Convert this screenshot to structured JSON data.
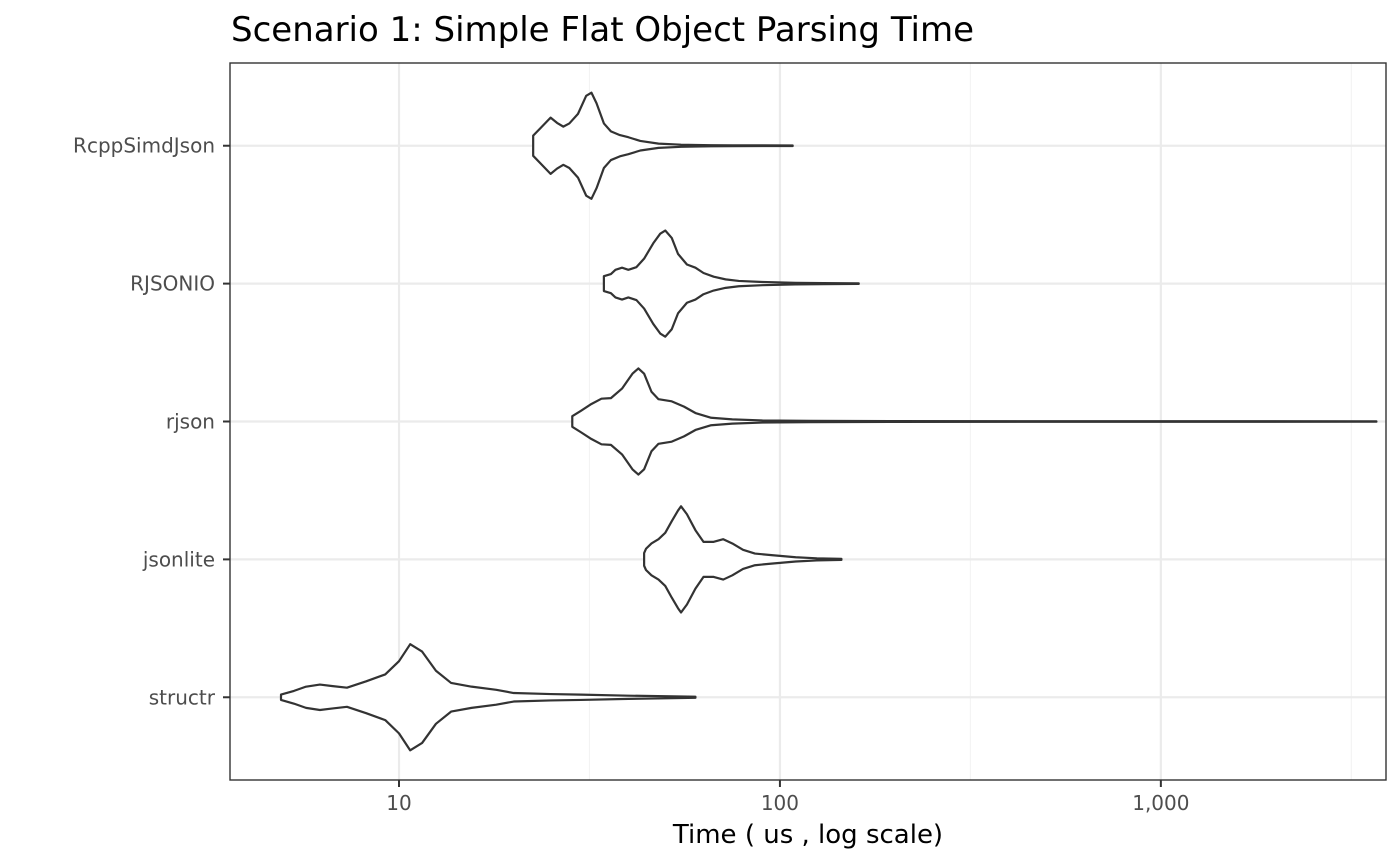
{
  "chart_data": {
    "type": "violin",
    "title": "Scenario 1: Simple Flat Object Parsing Time",
    "xlabel": "Time ( us , log scale)",
    "ylabel": "",
    "x_scale": "log10",
    "xlim": [
      3.6,
      3900
    ],
    "x_ticks": [
      10,
      100,
      1000
    ],
    "x_tick_labels": [
      "10",
      "100",
      "1,000"
    ],
    "grid": true,
    "legend": "none",
    "categories": [
      "RcppSimdJson",
      "RJSONIO",
      "rjson",
      "jsonlite",
      "structr"
    ],
    "series": [
      {
        "name": "RcppSimdJson",
        "min": 22.5,
        "max": 108,
        "density": [
          [
            22.5,
            0.19
          ],
          [
            23.5,
            0.33
          ],
          [
            25,
            0.53
          ],
          [
            26,
            0.43
          ],
          [
            27,
            0.36
          ],
          [
            28,
            0.42
          ],
          [
            29.5,
            0.6
          ],
          [
            31,
            0.94
          ],
          [
            32,
            1.0
          ],
          [
            33,
            0.8
          ],
          [
            34.5,
            0.42
          ],
          [
            36,
            0.27
          ],
          [
            38,
            0.2
          ],
          [
            40,
            0.16
          ],
          [
            43,
            0.09
          ],
          [
            48,
            0.04
          ],
          [
            55,
            0.02
          ],
          [
            60,
            0.015
          ],
          [
            66,
            0.01
          ],
          [
            75,
            0.008
          ],
          [
            108,
            0.005
          ]
        ]
      },
      {
        "name": "RJSONIO",
        "min": 34.5,
        "max": 161,
        "density": [
          [
            34.5,
            0.14
          ],
          [
            36,
            0.18
          ],
          [
            37,
            0.26
          ],
          [
            38.5,
            0.3
          ],
          [
            40,
            0.26
          ],
          [
            42,
            0.31
          ],
          [
            44,
            0.47
          ],
          [
            46.5,
            0.76
          ],
          [
            48.5,
            0.94
          ],
          [
            50,
            1.0
          ],
          [
            52,
            0.86
          ],
          [
            54,
            0.56
          ],
          [
            57,
            0.36
          ],
          [
            60,
            0.3
          ],
          [
            63,
            0.2
          ],
          [
            67,
            0.13
          ],
          [
            72,
            0.08
          ],
          [
            78,
            0.05
          ],
          [
            90,
            0.03
          ],
          [
            110,
            0.015
          ],
          [
            130,
            0.01
          ],
          [
            161,
            0.005
          ]
        ]
      },
      {
        "name": "rjson",
        "min": 28.5,
        "max": 3680,
        "density": [
          [
            28.5,
            0.1
          ],
          [
            30,
            0.2
          ],
          [
            32,
            0.33
          ],
          [
            34,
            0.43
          ],
          [
            36,
            0.44
          ],
          [
            38.5,
            0.62
          ],
          [
            41,
            0.9
          ],
          [
            42.5,
            1.0
          ],
          [
            44,
            0.9
          ],
          [
            46,
            0.56
          ],
          [
            48,
            0.42
          ],
          [
            52,
            0.38
          ],
          [
            56,
            0.28
          ],
          [
            60,
            0.16
          ],
          [
            66,
            0.07
          ],
          [
            75,
            0.04
          ],
          [
            90,
            0.02
          ],
          [
            120,
            0.012
          ],
          [
            200,
            0.007
          ],
          [
            500,
            0.005
          ],
          [
            3680,
            0.004
          ]
        ]
      },
      {
        "name": "jsonlite",
        "min": 44,
        "max": 145,
        "density": [
          [
            44,
            0.05
          ],
          [
            44,
            0.12
          ],
          [
            44.5,
            0.2
          ],
          [
            46,
            0.3
          ],
          [
            48,
            0.38
          ],
          [
            50,
            0.5
          ],
          [
            52,
            0.72
          ],
          [
            54,
            0.92
          ],
          [
            55,
            1.0
          ],
          [
            57,
            0.85
          ],
          [
            60,
            0.55
          ],
          [
            63,
            0.33
          ],
          [
            67,
            0.33
          ],
          [
            71,
            0.38
          ],
          [
            75,
            0.3
          ],
          [
            80,
            0.18
          ],
          [
            86,
            0.11
          ],
          [
            95,
            0.08
          ],
          [
            110,
            0.04
          ],
          [
            125,
            0.02
          ],
          [
            145,
            0.01
          ]
        ]
      },
      {
        "name": "structr",
        "min": 4.9,
        "max": 60,
        "density": [
          [
            4.9,
            0.05
          ],
          [
            5.3,
            0.12
          ],
          [
            5.7,
            0.2
          ],
          [
            6.2,
            0.24
          ],
          [
            6.7,
            0.21
          ],
          [
            7.3,
            0.18
          ],
          [
            8.2,
            0.3
          ],
          [
            9.2,
            0.43
          ],
          [
            10,
            0.68
          ],
          [
            10.7,
            1.0
          ],
          [
            11.5,
            0.86
          ],
          [
            12.5,
            0.5
          ],
          [
            13.7,
            0.27
          ],
          [
            15.5,
            0.2
          ],
          [
            18,
            0.14
          ],
          [
            20,
            0.08
          ],
          [
            25,
            0.06
          ],
          [
            30,
            0.05
          ],
          [
            40,
            0.03
          ],
          [
            50,
            0.02
          ],
          [
            60,
            0.01
          ]
        ]
      }
    ]
  }
}
